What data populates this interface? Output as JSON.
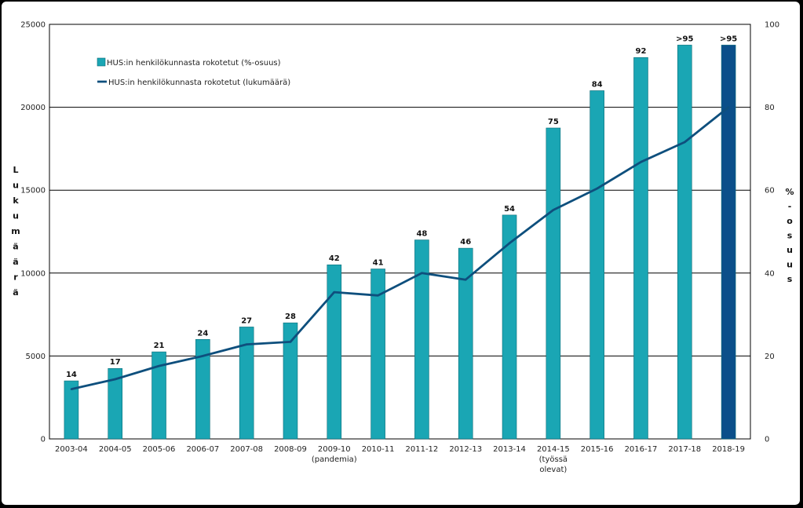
{
  "chart_data": {
    "type": "bar",
    "categories": [
      [
        "2003-04"
      ],
      [
        "2004-05"
      ],
      [
        "2005-06"
      ],
      [
        "2006-07"
      ],
      [
        "2007-08"
      ],
      [
        "2008-09"
      ],
      [
        "2009-10",
        "(pandemia)"
      ],
      [
        "2010-11"
      ],
      [
        "2011-12"
      ],
      [
        "2012-13"
      ],
      [
        "2013-14"
      ],
      [
        "2014-15",
        "(työssä",
        "olevat)"
      ],
      [
        "2015-16"
      ],
      [
        "2016-17"
      ],
      [
        "2017-18"
      ],
      [
        "2018-19"
      ]
    ],
    "series": [
      {
        "name": "HUS:in henkilökunnasta rokotetut (%-osuus)",
        "type": "bar",
        "axis": "left",
        "color": "#1aa6b4",
        "highlight_color": "#0b4f8a",
        "highlight_index": 15,
        "values": [
          3500,
          4250,
          5250,
          6000,
          6750,
          7000,
          10500,
          10250,
          12000,
          11500,
          13500,
          18750,
          21000,
          23000,
          23750,
          23750
        ],
        "data_labels": [
          "14",
          "17",
          "21",
          "24",
          "27",
          "28",
          "42",
          "41",
          "48",
          "46",
          "54",
          "75",
          "84",
          "92",
          ">95",
          ">95"
        ]
      },
      {
        "name": "HUS:in henkilökunnasta rokotetut (lukumäärä)",
        "type": "line",
        "axis": "left",
        "color": "#0e4f7d",
        "values": [
          3000,
          3600,
          4400,
          5000,
          5700,
          5850,
          8850,
          8650,
          10000,
          9600,
          11800,
          13800,
          15100,
          16700,
          17900,
          20000
        ]
      }
    ],
    "ylabel": "Lukumäärä",
    "y2label": "%-osuus",
    "ylim": [
      0,
      25000
    ],
    "y2lim": [
      0,
      100
    ],
    "yticks": [
      "0",
      "5000",
      "10000",
      "15000",
      "20000",
      "25000"
    ],
    "y2ticks": [
      "0",
      "20",
      "40",
      "60",
      "80",
      "100"
    ],
    "grid": true,
    "legend_position": "top-left"
  }
}
